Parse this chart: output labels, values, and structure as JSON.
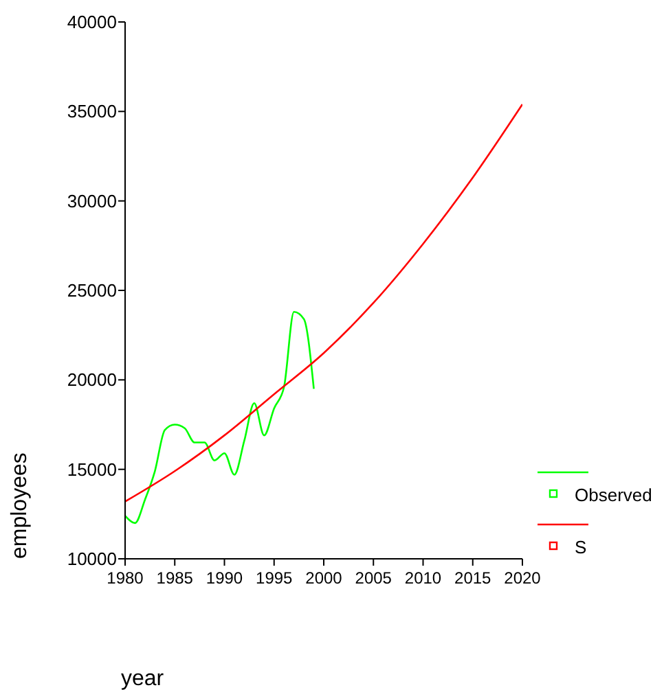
{
  "chart_data": {
    "type": "line",
    "xlabel": "year",
    "ylabel": "employees",
    "xlim": [
      1980,
      2020
    ],
    "ylim": [
      10000,
      40000
    ],
    "xticks": [
      1980,
      1985,
      1990,
      1995,
      2000,
      2005,
      2010,
      2015,
      2020
    ],
    "yticks": [
      10000,
      15000,
      20000,
      25000,
      30000,
      35000,
      40000
    ],
    "legend": "right",
    "grid": false,
    "series": [
      {
        "name": "Observed",
        "color": "#00ff00",
        "x": [
          1980,
          1981,
          1982,
          1983,
          1984,
          1985,
          1986,
          1987,
          1988,
          1989,
          1990,
          1991,
          1992,
          1993,
          1994,
          1995,
          1996,
          1997,
          1998,
          1999
        ],
        "values": [
          12400,
          12000,
          13300,
          14900,
          17200,
          17500,
          17300,
          16500,
          16500,
          15500,
          15900,
          14700,
          16600,
          18700,
          16900,
          18400,
          19600,
          23800,
          23400,
          19500
        ]
      },
      {
        "name": "S",
        "color": "#ff0000",
        "x": [
          1980,
          1985,
          1990,
          1995,
          2000,
          2005,
          2010,
          2015,
          2020
        ],
        "values": [
          13200,
          14900,
          16900,
          19200,
          21500,
          24300,
          27600,
          31300,
          35400
        ]
      }
    ]
  }
}
